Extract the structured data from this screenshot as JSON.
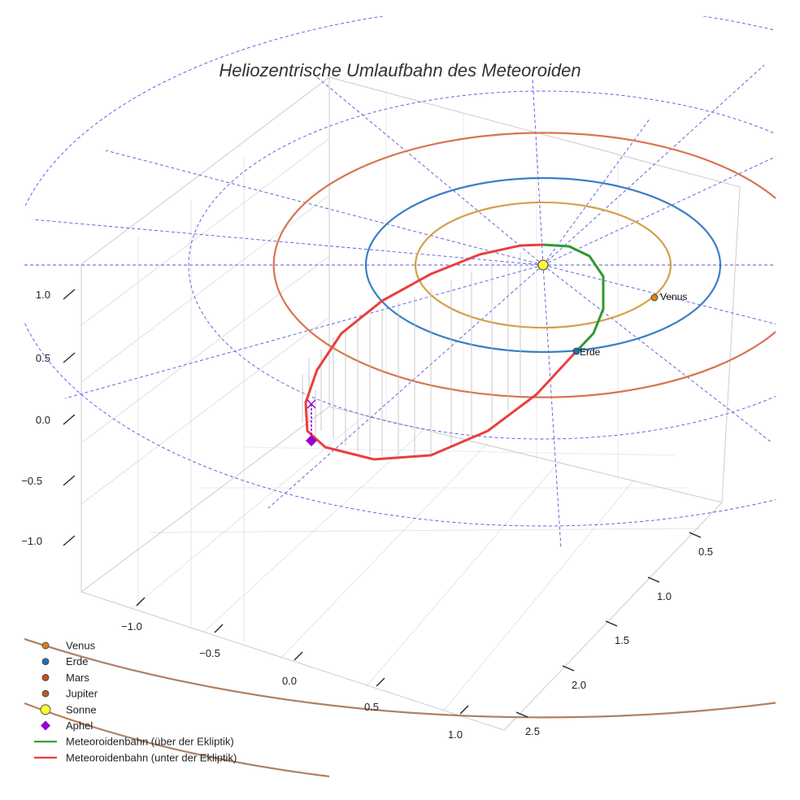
{
  "chart_data": {
    "type": "line3d",
    "title": "Heliozentrische Umlaufbahn des Meteoroiden",
    "axes": {
      "x_ticks": [
        "−1.0",
        "−0.5",
        "0.0",
        "0.5",
        "1.0"
      ],
      "y_ticks": [
        "0.5",
        "1.0",
        "1.5",
        "2.0",
        "2.5"
      ],
      "z_ticks": [
        "1.0",
        "0.5",
        "0.0",
        "−0.5",
        "−1.0"
      ],
      "xlim": [
        -1.3,
        1.2
      ],
      "ylim": [
        0.3,
        2.6
      ],
      "zlim": [
        -1.3,
        1.2
      ]
    },
    "planets": [
      {
        "name": "Venus",
        "orbit_radius_au": 0.72,
        "color": "#d4a04a",
        "marker_color": "#d4861a",
        "label": "Venus"
      },
      {
        "name": "Erde",
        "orbit_radius_au": 1.0,
        "color": "#3a7fc4",
        "marker_color": "#1f6fb5",
        "label": "Erde"
      },
      {
        "name": "Mars",
        "orbit_radius_au": 1.52,
        "color": "#d9744f",
        "marker_color": "#c8501f"
      },
      {
        "name": "Jupiter",
        "orbit_radius_au": 5.2,
        "color": "#b08060",
        "marker_color": "#b0603a"
      }
    ],
    "sun": {
      "name": "Sonne",
      "color": "#ffff33"
    },
    "aphel": {
      "name": "Aphel",
      "color": "#9400d3"
    },
    "meteoroid_orbit": {
      "above_name": "Meteoroidenbahn (über der Ekliptik)",
      "above_color": "#2e9a2e",
      "below_name": "Meteoroidenbahn (unter der Ekliptik)",
      "below_color": "#e8403e"
    },
    "legend": {
      "placement": "bottom-left",
      "entries": [
        {
          "label": "Venus",
          "kind": "dot",
          "color": "#d4861a"
        },
        {
          "label": "Erde",
          "kind": "dot",
          "color": "#1f6fb5"
        },
        {
          "label": "Mars",
          "kind": "dot",
          "color": "#c8501f"
        },
        {
          "label": "Jupiter",
          "kind": "dot",
          "color": "#b0603a"
        },
        {
          "label": "Sonne",
          "kind": "sun",
          "color": "#ffff33"
        },
        {
          "label": "Aphel",
          "kind": "diamond",
          "color": "#9400d3"
        },
        {
          "label": "Meteoroidenbahn (über der Ekliptik)",
          "kind": "line",
          "color": "#2e9a2e"
        },
        {
          "label": "Meteoroidenbahn (unter der Ekliptik)",
          "kind": "line",
          "color": "#e8403e"
        }
      ]
    },
    "ecliptic_grid_color": "#5555dd"
  }
}
